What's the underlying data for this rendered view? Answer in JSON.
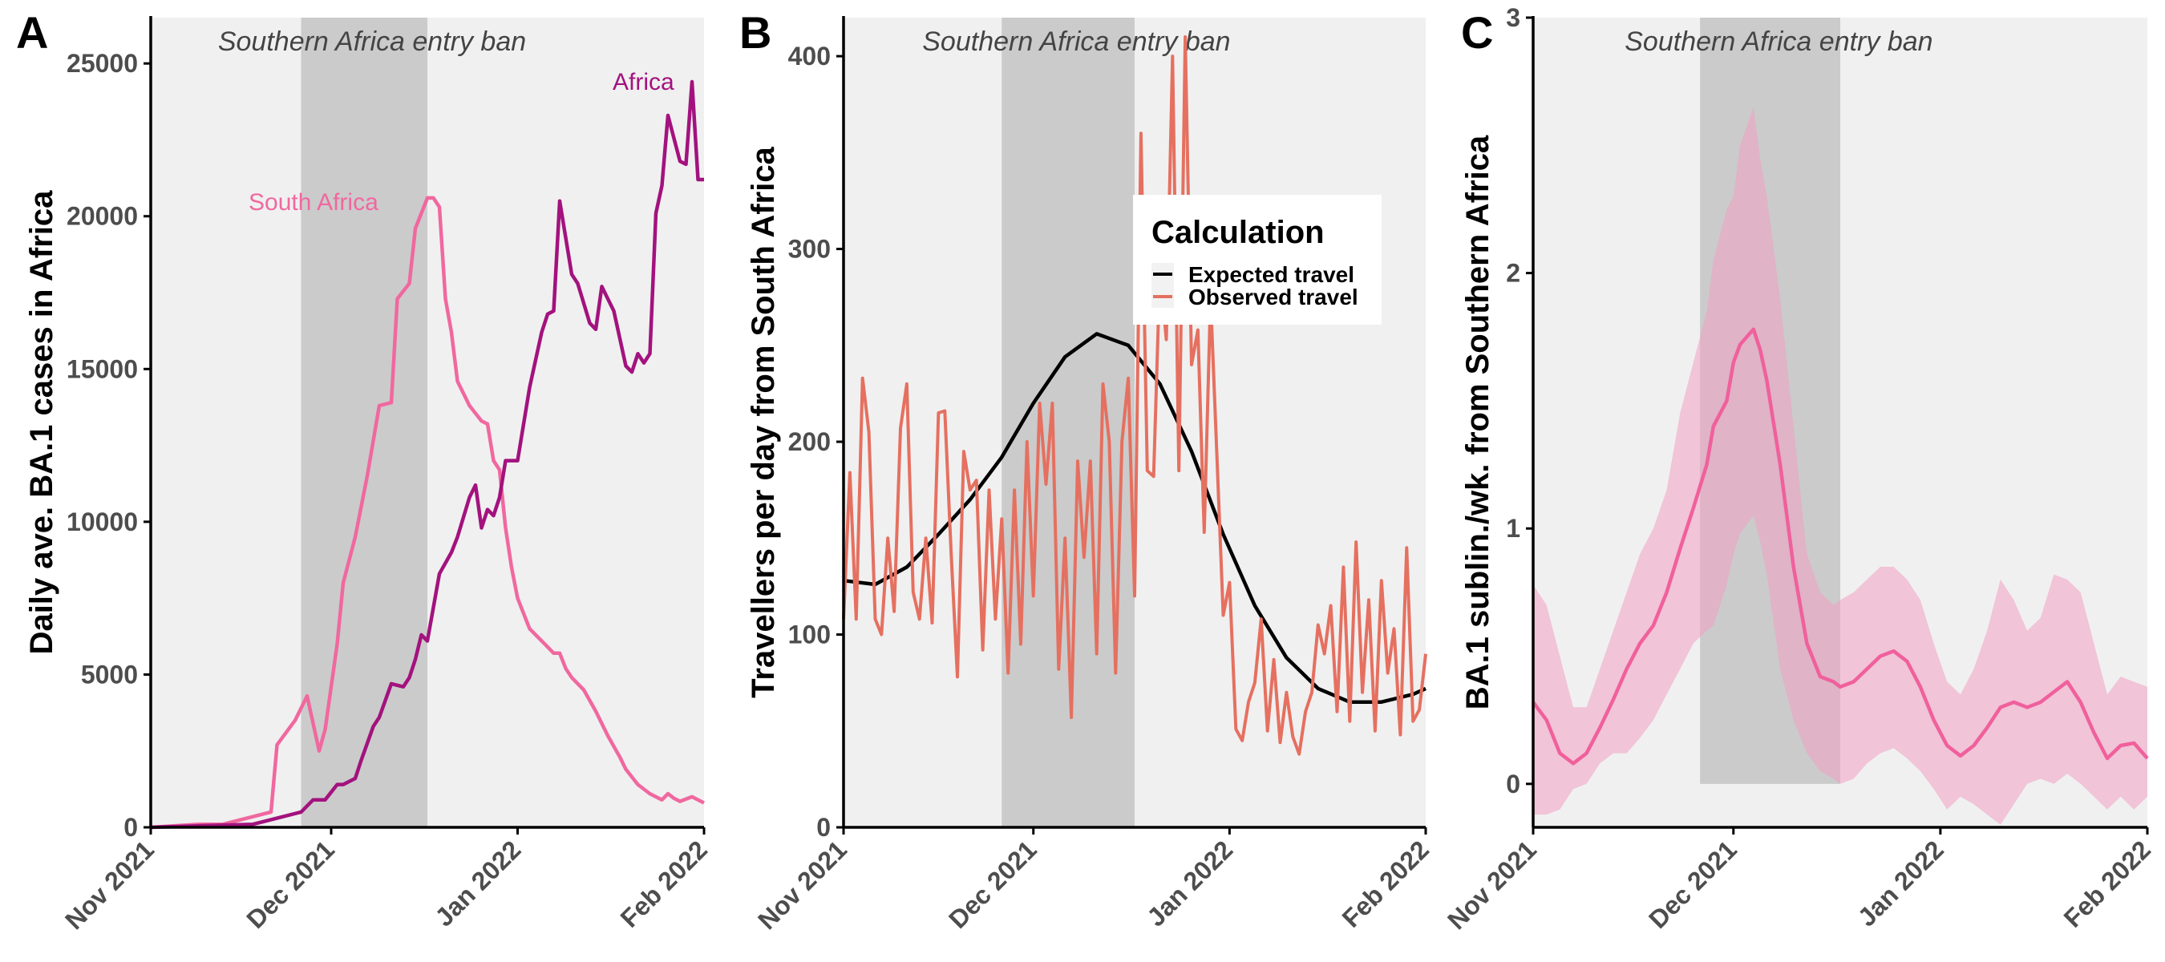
{
  "chart_data": [
    {
      "panel_letter": "A",
      "type": "line",
      "ylabel": "Daily ave. BA.1 cases in Africa",
      "band_label": "Southern Africa entry ban",
      "band": [
        "2021-11-26",
        "2021-12-17"
      ],
      "xlim": [
        "2021-11-01",
        "2022-02-01"
      ],
      "ylim": [
        0,
        26500
      ],
      "yticks": [
        0,
        5000,
        10000,
        15000,
        20000,
        25000
      ],
      "xticks": [
        "2021-11-01",
        "2021-12-01",
        "2022-01-01",
        "2022-02-01"
      ],
      "xtick_labels": [
        "Nov 2021",
        "Dec 2021",
        "Jan 2022",
        "Feb 2022"
      ],
      "grid": false,
      "series": [
        {
          "name": "South Africa",
          "color": "#f0689f",
          "x": [
            "2021-11-01",
            "2021-11-09",
            "2021-11-13",
            "2021-11-17",
            "2021-11-21",
            "2021-11-22",
            "2021-11-25",
            "2021-11-27",
            "2021-11-29",
            "2021-11-30",
            "2021-12-02",
            "2021-12-03",
            "2021-12-05",
            "2021-12-07",
            "2021-12-09",
            "2021-12-11",
            "2021-12-12",
            "2021-12-14",
            "2021-12-15",
            "2021-12-17",
            "2021-12-18",
            "2021-12-19",
            "2021-12-20",
            "2021-12-21",
            "2021-12-22",
            "2021-12-24",
            "2021-12-26",
            "2021-12-27",
            "2021-12-28",
            "2021-12-29",
            "2021-12-30",
            "2021-12-31",
            "2022-01-01",
            "2022-01-03",
            "2022-01-06",
            "2022-01-07",
            "2022-01-08",
            "2022-01-09",
            "2022-01-10",
            "2022-01-12",
            "2022-01-14",
            "2022-01-16",
            "2022-01-18",
            "2022-01-19",
            "2022-01-21",
            "2022-01-23",
            "2022-01-25",
            "2022-01-26",
            "2022-01-27",
            "2022-01-28",
            "2022-01-30",
            "2022-01-31",
            "2022-02-01"
          ],
          "values": [
            0,
            100,
            100,
            300,
            500,
            2700,
            3500,
            4300,
            2500,
            3200,
            6000,
            8000,
            9500,
            11500,
            13800,
            13900,
            17300,
            17800,
            19600,
            20600,
            20600,
            20300,
            17300,
            16200,
            14600,
            13800,
            13300,
            13200,
            12000,
            11700,
            9800,
            8500,
            7500,
            6500,
            5900,
            5700,
            5700,
            5200,
            4900,
            4500,
            3800,
            3000,
            2300,
            1900,
            1400,
            1100,
            900,
            1100,
            950,
            850,
            1000,
            900,
            800
          ]
        },
        {
          "name": "Africa",
          "color": "#a3127e",
          "x": [
            "2021-11-01",
            "2021-11-18",
            "2021-11-22",
            "2021-11-26",
            "2021-11-28",
            "2021-11-30",
            "2021-12-02",
            "2021-12-03",
            "2021-12-05",
            "2021-12-06",
            "2021-12-08",
            "2021-12-09",
            "2021-12-11",
            "2021-12-13",
            "2021-12-14",
            "2021-12-15",
            "2021-12-16",
            "2021-12-17",
            "2021-12-19",
            "2021-12-21",
            "2021-12-22",
            "2021-12-24",
            "2021-12-25",
            "2021-12-26",
            "2021-12-27",
            "2021-12-28",
            "2021-12-29",
            "2021-12-30",
            "2022-01-01",
            "2022-01-03",
            "2022-01-05",
            "2022-01-06",
            "2022-01-07",
            "2022-01-08",
            "2022-01-10",
            "2022-01-11",
            "2022-01-13",
            "2022-01-14",
            "2022-01-15",
            "2022-01-17",
            "2022-01-19",
            "2022-01-20",
            "2022-01-21",
            "2022-01-22",
            "2022-01-23",
            "2022-01-24",
            "2022-01-25",
            "2022-01-26",
            "2022-01-28",
            "2022-01-29",
            "2022-01-30",
            "2022-01-31",
            "2022-02-01"
          ],
          "values": [
            0,
            100,
            300,
            500,
            900,
            900,
            1400,
            1400,
            1600,
            2200,
            3300,
            3600,
            4700,
            4600,
            4900,
            5500,
            6300,
            6100,
            8300,
            9000,
            9500,
            10800,
            11200,
            9800,
            10400,
            10200,
            10800,
            12000,
            12000,
            14400,
            16200,
            16800,
            16900,
            20500,
            18100,
            17800,
            16500,
            16300,
            17700,
            16900,
            15100,
            14900,
            15500,
            15200,
            15500,
            20100,
            21000,
            23300,
            21800,
            21700,
            24400,
            21200,
            21200
          ]
        }
      ]
    },
    {
      "panel_letter": "B",
      "type": "line",
      "ylabel": "Travellers per day from South Africa",
      "band_label": "Southern Africa entry ban",
      "band": [
        "2021-11-26",
        "2021-12-17"
      ],
      "xlim": [
        "2021-11-01",
        "2022-02-01"
      ],
      "ylim": [
        0,
        420
      ],
      "yticks": [
        0,
        100,
        200,
        300,
        400
      ],
      "xticks": [
        "2021-11-01",
        "2021-12-01",
        "2022-01-01",
        "2022-02-01"
      ],
      "xtick_labels": [
        "Nov 2021",
        "Dec 2021",
        "Jan 2022",
        "Feb 2022"
      ],
      "grid": false,
      "legend": {
        "title": "Calculation",
        "placement": "right, upper-middle",
        "items": [
          "Expected travel",
          "Observed travel"
        ]
      },
      "expected_travel": {
        "name": "Expected travel",
        "color": "#000000",
        "x": [
          "2021-11-01",
          "2021-11-06",
          "2021-11-11",
          "2021-11-16",
          "2021-11-21",
          "2021-11-26",
          "2021-12-01",
          "2021-12-06",
          "2021-12-11",
          "2021-12-16",
          "2021-12-21",
          "2021-12-26",
          "2021-12-31",
          "2022-01-05",
          "2022-01-10",
          "2022-01-15",
          "2022-01-20",
          "2022-01-25",
          "2022-01-30",
          "2022-02-01"
        ],
        "values": [
          128,
          126,
          135,
          152,
          170,
          192,
          220,
          244,
          256,
          250,
          230,
          195,
          152,
          115,
          88,
          72,
          65,
          65,
          69,
          72
        ]
      },
      "observed_travel": {
        "name": "Observed travel",
        "color": "#e57060",
        "x": [
          "2021-11-01",
          "2021-11-02",
          "2021-11-03",
          "2021-11-04",
          "2021-11-05",
          "2021-11-06",
          "2021-11-07",
          "2021-11-08",
          "2021-11-09",
          "2021-11-10",
          "2021-11-11",
          "2021-11-12",
          "2021-11-13",
          "2021-11-14",
          "2021-11-15",
          "2021-11-16",
          "2021-11-17",
          "2021-11-18",
          "2021-11-19",
          "2021-11-20",
          "2021-11-21",
          "2021-11-22",
          "2021-11-23",
          "2021-11-24",
          "2021-11-25",
          "2021-11-26",
          "2021-11-27",
          "2021-11-28",
          "2021-11-29",
          "2021-11-30",
          "2021-12-01",
          "2021-12-02",
          "2021-12-03",
          "2021-12-04",
          "2021-12-05",
          "2021-12-06",
          "2021-12-07",
          "2021-12-08",
          "2021-12-09",
          "2021-12-10",
          "2021-12-11",
          "2021-12-12",
          "2021-12-13",
          "2021-12-14",
          "2021-12-15",
          "2021-12-16",
          "2021-12-17",
          "2021-12-18",
          "2021-12-19",
          "2021-12-20",
          "2021-12-21",
          "2021-12-22",
          "2021-12-23",
          "2021-12-24",
          "2021-12-25",
          "2021-12-26",
          "2021-12-27",
          "2021-12-28",
          "2021-12-29",
          "2021-12-30",
          "2021-12-31",
          "2022-01-01",
          "2022-01-02",
          "2022-01-03",
          "2022-01-04",
          "2022-01-05",
          "2022-01-06",
          "2022-01-07",
          "2022-01-08",
          "2022-01-09",
          "2022-01-10",
          "2022-01-11",
          "2022-01-12",
          "2022-01-13",
          "2022-01-14",
          "2022-01-15",
          "2022-01-16",
          "2022-01-17",
          "2022-01-18",
          "2022-01-19",
          "2022-01-20",
          "2022-01-21",
          "2022-01-22",
          "2022-01-23",
          "2022-01-24",
          "2022-01-25",
          "2022-01-26",
          "2022-01-27",
          "2022-01-28",
          "2022-01-29",
          "2022-01-30",
          "2022-01-31",
          "2022-02-01"
        ],
        "values": [
          108,
          184,
          108,
          233,
          205,
          108,
          100,
          150,
          112,
          207,
          230,
          122,
          108,
          150,
          106,
          215,
          216,
          142,
          78,
          195,
          175,
          180,
          92,
          175,
          108,
          160,
          80,
          175,
          95,
          200,
          120,
          220,
          178,
          220,
          82,
          150,
          57,
          190,
          140,
          190,
          90,
          230,
          200,
          80,
          200,
          233,
          120,
          360,
          185,
          182,
          290,
          253,
          400,
          185,
          410,
          240,
          258,
          153,
          275,
          193,
          110,
          127,
          51,
          45,
          65,
          75,
          108,
          50,
          87,
          44,
          70,
          47,
          38,
          60,
          70,
          105,
          90,
          115,
          60,
          135,
          55,
          148,
          70,
          118,
          50,
          128,
          80,
          103,
          48,
          145,
          55,
          61,
          90
        ]
      }
    },
    {
      "panel_letter": "C",
      "type": "area",
      "ylabel": "BA.1 sublin./wk. from Southern Africa",
      "band_label": "Southern Africa entry ban",
      "band": [
        "2021-11-26",
        "2021-12-17"
      ],
      "band_yrange": [
        0,
        3
      ],
      "xlim": [
        "2021-11-01",
        "2022-02-01"
      ],
      "ylim": [
        -0.17,
        3
      ],
      "yticks": [
        0,
        1,
        2,
        3
      ],
      "xticks": [
        "2021-11-01",
        "2021-12-01",
        "2022-01-01",
        "2022-02-01"
      ],
      "xtick_labels": [
        "Nov 2021",
        "Dec 2021",
        "Jan 2022",
        "Feb 2022"
      ],
      "grid": false,
      "series": [
        {
          "name": "",
          "color": "#f0609c",
          "ribbon_color": "#f2a0c2",
          "x": [
            "2021-11-01",
            "2021-11-03",
            "2021-11-05",
            "2021-11-07",
            "2021-11-09",
            "2021-11-11",
            "2021-11-13",
            "2021-11-15",
            "2021-11-17",
            "2021-11-19",
            "2021-11-21",
            "2021-11-23",
            "2021-11-25",
            "2021-11-27",
            "2021-11-28",
            "2021-11-30",
            "2021-12-01",
            "2021-12-02",
            "2021-12-04",
            "2021-12-05",
            "2021-12-06",
            "2021-12-08",
            "2021-12-10",
            "2021-12-12",
            "2021-12-14",
            "2021-12-16",
            "2021-12-17",
            "2021-12-19",
            "2021-12-21",
            "2021-12-23",
            "2021-12-25",
            "2021-12-27",
            "2021-12-29",
            "2021-12-31",
            "2022-01-02",
            "2022-01-04",
            "2022-01-06",
            "2022-01-08",
            "2022-01-10",
            "2022-01-12",
            "2022-01-14",
            "2022-01-16",
            "2022-01-18",
            "2022-01-20",
            "2022-01-22",
            "2022-01-24",
            "2022-01-26",
            "2022-01-28",
            "2022-01-30",
            "2022-02-01"
          ],
          "values": [
            0.32,
            0.25,
            0.12,
            0.08,
            0.12,
            0.22,
            0.33,
            0.45,
            0.55,
            0.62,
            0.75,
            0.92,
            1.08,
            1.25,
            1.4,
            1.5,
            1.65,
            1.72,
            1.78,
            1.7,
            1.58,
            1.25,
            0.85,
            0.55,
            0.42,
            0.4,
            0.38,
            0.4,
            0.45,
            0.5,
            0.52,
            0.48,
            0.38,
            0.25,
            0.15,
            0.11,
            0.15,
            0.22,
            0.3,
            0.32,
            0.3,
            0.32,
            0.36,
            0.4,
            0.32,
            0.2,
            0.1,
            0.15,
            0.16,
            0.1
          ],
          "lower": [
            -0.12,
            -0.12,
            -0.1,
            -0.02,
            0.0,
            0.08,
            0.12,
            0.12,
            0.18,
            0.25,
            0.35,
            0.45,
            0.55,
            0.6,
            0.62,
            0.78,
            0.9,
            0.98,
            1.05,
            0.95,
            0.82,
            0.45,
            0.25,
            0.12,
            0.05,
            0.02,
            0.0,
            0.02,
            0.08,
            0.12,
            0.14,
            0.1,
            0.05,
            -0.02,
            -0.1,
            -0.05,
            -0.08,
            -0.12,
            -0.16,
            -0.08,
            0.0,
            0.02,
            0.0,
            0.04,
            0.0,
            -0.05,
            -0.1,
            -0.05,
            -0.1,
            -0.05
          ],
          "upper": [
            0.78,
            0.7,
            0.5,
            0.3,
            0.3,
            0.45,
            0.6,
            0.75,
            0.9,
            1.0,
            1.15,
            1.45,
            1.65,
            1.85,
            2.05,
            2.25,
            2.3,
            2.5,
            2.65,
            2.45,
            2.3,
            1.9,
            1.4,
            0.9,
            0.75,
            0.7,
            0.72,
            0.75,
            0.8,
            0.85,
            0.85,
            0.8,
            0.72,
            0.55,
            0.4,
            0.35,
            0.45,
            0.6,
            0.8,
            0.72,
            0.6,
            0.65,
            0.82,
            0.8,
            0.75,
            0.55,
            0.35,
            0.42,
            0.4,
            0.38
          ]
        }
      ]
    }
  ]
}
